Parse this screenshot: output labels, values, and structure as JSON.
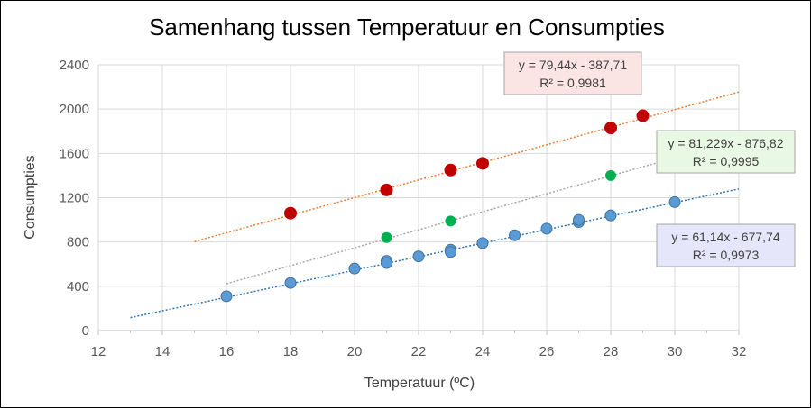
{
  "chart_data": {
    "type": "scatter",
    "title": "Samenhang tussen Temperatuur en Consumpties",
    "xlabel": "Temperatuur  (ºC)",
    "ylabel": "Consumpties",
    "xlim": [
      12,
      32
    ],
    "ylim": [
      0,
      2400
    ],
    "xticks": [
      12,
      14,
      16,
      18,
      20,
      22,
      24,
      26,
      28,
      30,
      32
    ],
    "yticks": [
      0,
      400,
      800,
      1200,
      1600,
      2000,
      2400
    ],
    "grid": true,
    "series": [
      {
        "color": "#C00000",
        "trend_color": "#ED7D31",
        "trend_range": [
          15,
          32
        ],
        "slope": 79.44,
        "intercept": -387.71,
        "equation": "y = 79,44x - 387,71",
        "r2": "R² = 0,9981",
        "box_fill": "#FBE5E4",
        "points": [
          [
            18,
            1060
          ],
          [
            21,
            1270
          ],
          [
            23,
            1450
          ],
          [
            24,
            1510
          ],
          [
            28,
            1830
          ],
          [
            29,
            1940
          ]
        ]
      },
      {
        "color": "#00B050",
        "trend_color": "#A6A6A6",
        "trend_range": [
          16,
          32
        ],
        "slope": 81.229,
        "intercept": -876.82,
        "equation": "y = 81,229x - 876,82",
        "r2": "R² = 0,9995",
        "box_fill": "#E9F8E4",
        "points": [
          [
            21,
            840
          ],
          [
            23,
            990
          ],
          [
            28,
            1400
          ]
        ]
      },
      {
        "color": "#5B9BD5",
        "trend_color": "#2E75B6",
        "trend_range": [
          13,
          32
        ],
        "slope": 61.14,
        "intercept": -677.74,
        "equation": "y = 61,14x - 677,74",
        "r2": "R² = 0,9973",
        "box_fill": "#E6E6FA",
        "points": [
          [
            16,
            310
          ],
          [
            18,
            430
          ],
          [
            20,
            560
          ],
          [
            21,
            630
          ],
          [
            21,
            610
          ],
          [
            22,
            670
          ],
          [
            23,
            730
          ],
          [
            23,
            710
          ],
          [
            24,
            790
          ],
          [
            25,
            860
          ],
          [
            26,
            920
          ],
          [
            27,
            980
          ],
          [
            27,
            1000
          ],
          [
            28,
            1040
          ],
          [
            30,
            1160
          ]
        ]
      }
    ]
  }
}
